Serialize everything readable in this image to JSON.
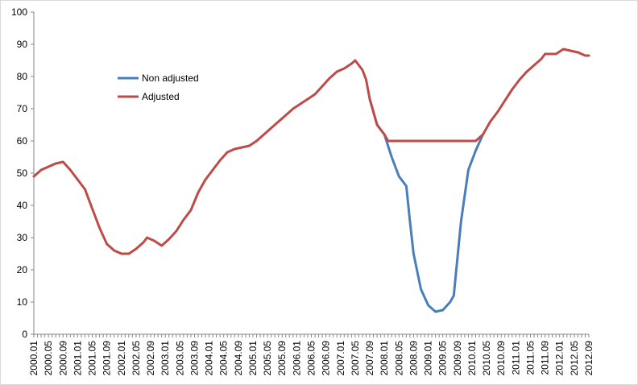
{
  "chart_data": {
    "type": "line",
    "title": "",
    "xlabel": "",
    "ylabel": "",
    "ylim": [
      0,
      100
    ],
    "yticks": [
      0,
      10,
      20,
      30,
      40,
      50,
      60,
      70,
      80,
      90,
      100
    ],
    "x_tick_labels": [
      "2000.01",
      "2000.05",
      "2000.09",
      "2001.01",
      "2001.05",
      "2001.09",
      "2002.01",
      "2002.05",
      "2002.09",
      "2003.01",
      "2003.05",
      "2003.09",
      "2004.01",
      "2004.05",
      "2004.09",
      "2005.01",
      "2005.05",
      "2005.09",
      "2006.01",
      "2006.05",
      "2006.09",
      "2007.01",
      "2007.05",
      "2007.09",
      "2008.01",
      "2008.05",
      "2008.09",
      "2009.01",
      "2009.05",
      "2009.09",
      "2010.01",
      "2010.05",
      "2010.09",
      "2011.01",
      "2011.05",
      "2011.09",
      "2012.01",
      "2012.05",
      "2012.09"
    ],
    "grid": false,
    "legend_position": "upper-left-inside",
    "series": [
      {
        "name": "Non adjusted",
        "color": "#4a7ebb",
        "points": [
          [
            "2007.09",
            73
          ],
          [
            "2007.11",
            65
          ],
          [
            "2008.01",
            62
          ],
          [
            "2008.03",
            55
          ],
          [
            "2008.05",
            49
          ],
          [
            "2008.07",
            46
          ],
          [
            "2008.08",
            35
          ],
          [
            "2008.09",
            25
          ],
          [
            "2008.11",
            14
          ],
          [
            "2009.01",
            9
          ],
          [
            "2009.03",
            7
          ],
          [
            "2009.05",
            7.5
          ],
          [
            "2009.07",
            10
          ],
          [
            "2009.08",
            12
          ],
          [
            "2009.10",
            35
          ],
          [
            "2009.12",
            51
          ],
          [
            "2010.02",
            57
          ],
          [
            "2010.04",
            62
          ]
        ]
      },
      {
        "name": "Adjusted",
        "color": "#be4b48",
        "points": [
          [
            "2000.01",
            49
          ],
          [
            "2000.03",
            51
          ],
          [
            "2000.05",
            52
          ],
          [
            "2000.07",
            53
          ],
          [
            "2000.09",
            53.5
          ],
          [
            "2000.11",
            51
          ],
          [
            "2001.01",
            48
          ],
          [
            "2001.03",
            45
          ],
          [
            "2001.05",
            39
          ],
          [
            "2001.07",
            33
          ],
          [
            "2001.09",
            28
          ],
          [
            "2001.11",
            26
          ],
          [
            "2002.01",
            25
          ],
          [
            "2002.03",
            25
          ],
          [
            "2002.05",
            26.5
          ],
          [
            "2002.07",
            28.5
          ],
          [
            "2002.08",
            30
          ],
          [
            "2002.10",
            29
          ],
          [
            "2002.12",
            27.5
          ],
          [
            "2003.02",
            29.5
          ],
          [
            "2003.04",
            32
          ],
          [
            "2003.06",
            35.5
          ],
          [
            "2003.08",
            38.5
          ],
          [
            "2003.10",
            44
          ],
          [
            "2003.12",
            48
          ],
          [
            "2004.02",
            51
          ],
          [
            "2004.04",
            54
          ],
          [
            "2004.06",
            56.5
          ],
          [
            "2004.08",
            57.5
          ],
          [
            "2004.10",
            58
          ],
          [
            "2004.12",
            58.5
          ],
          [
            "2005.02",
            60
          ],
          [
            "2005.04",
            62
          ],
          [
            "2005.06",
            64
          ],
          [
            "2005.08",
            66
          ],
          [
            "2005.10",
            68
          ],
          [
            "2005.12",
            70
          ],
          [
            "2006.02",
            71.5
          ],
          [
            "2006.04",
            73
          ],
          [
            "2006.06",
            74.5
          ],
          [
            "2006.08",
            77
          ],
          [
            "2006.10",
            79.5
          ],
          [
            "2006.12",
            81.5
          ],
          [
            "2007.02",
            82.5
          ],
          [
            "2007.04",
            84
          ],
          [
            "2007.05",
            85
          ],
          [
            "2007.07",
            82
          ],
          [
            "2007.08",
            79
          ],
          [
            "2007.09",
            73
          ],
          [
            "2007.11",
            65
          ],
          [
            "2008.01",
            62
          ],
          [
            "2008.02",
            60
          ],
          [
            "2010.02",
            60
          ],
          [
            "2010.04",
            62
          ],
          [
            "2010.06",
            66
          ],
          [
            "2010.08",
            69
          ],
          [
            "2010.10",
            72.5
          ],
          [
            "2010.12",
            76
          ],
          [
            "2011.02",
            79
          ],
          [
            "2011.04",
            81.5
          ],
          [
            "2011.06",
            83.5
          ],
          [
            "2011.08",
            85.5
          ],
          [
            "2011.09",
            87
          ],
          [
            "2011.12",
            87
          ],
          [
            "2012.02",
            88.5
          ],
          [
            "2012.04",
            88
          ],
          [
            "2012.06",
            87.5
          ],
          [
            "2012.08",
            86.5
          ],
          [
            "2012.09",
            86.5
          ]
        ]
      }
    ]
  }
}
